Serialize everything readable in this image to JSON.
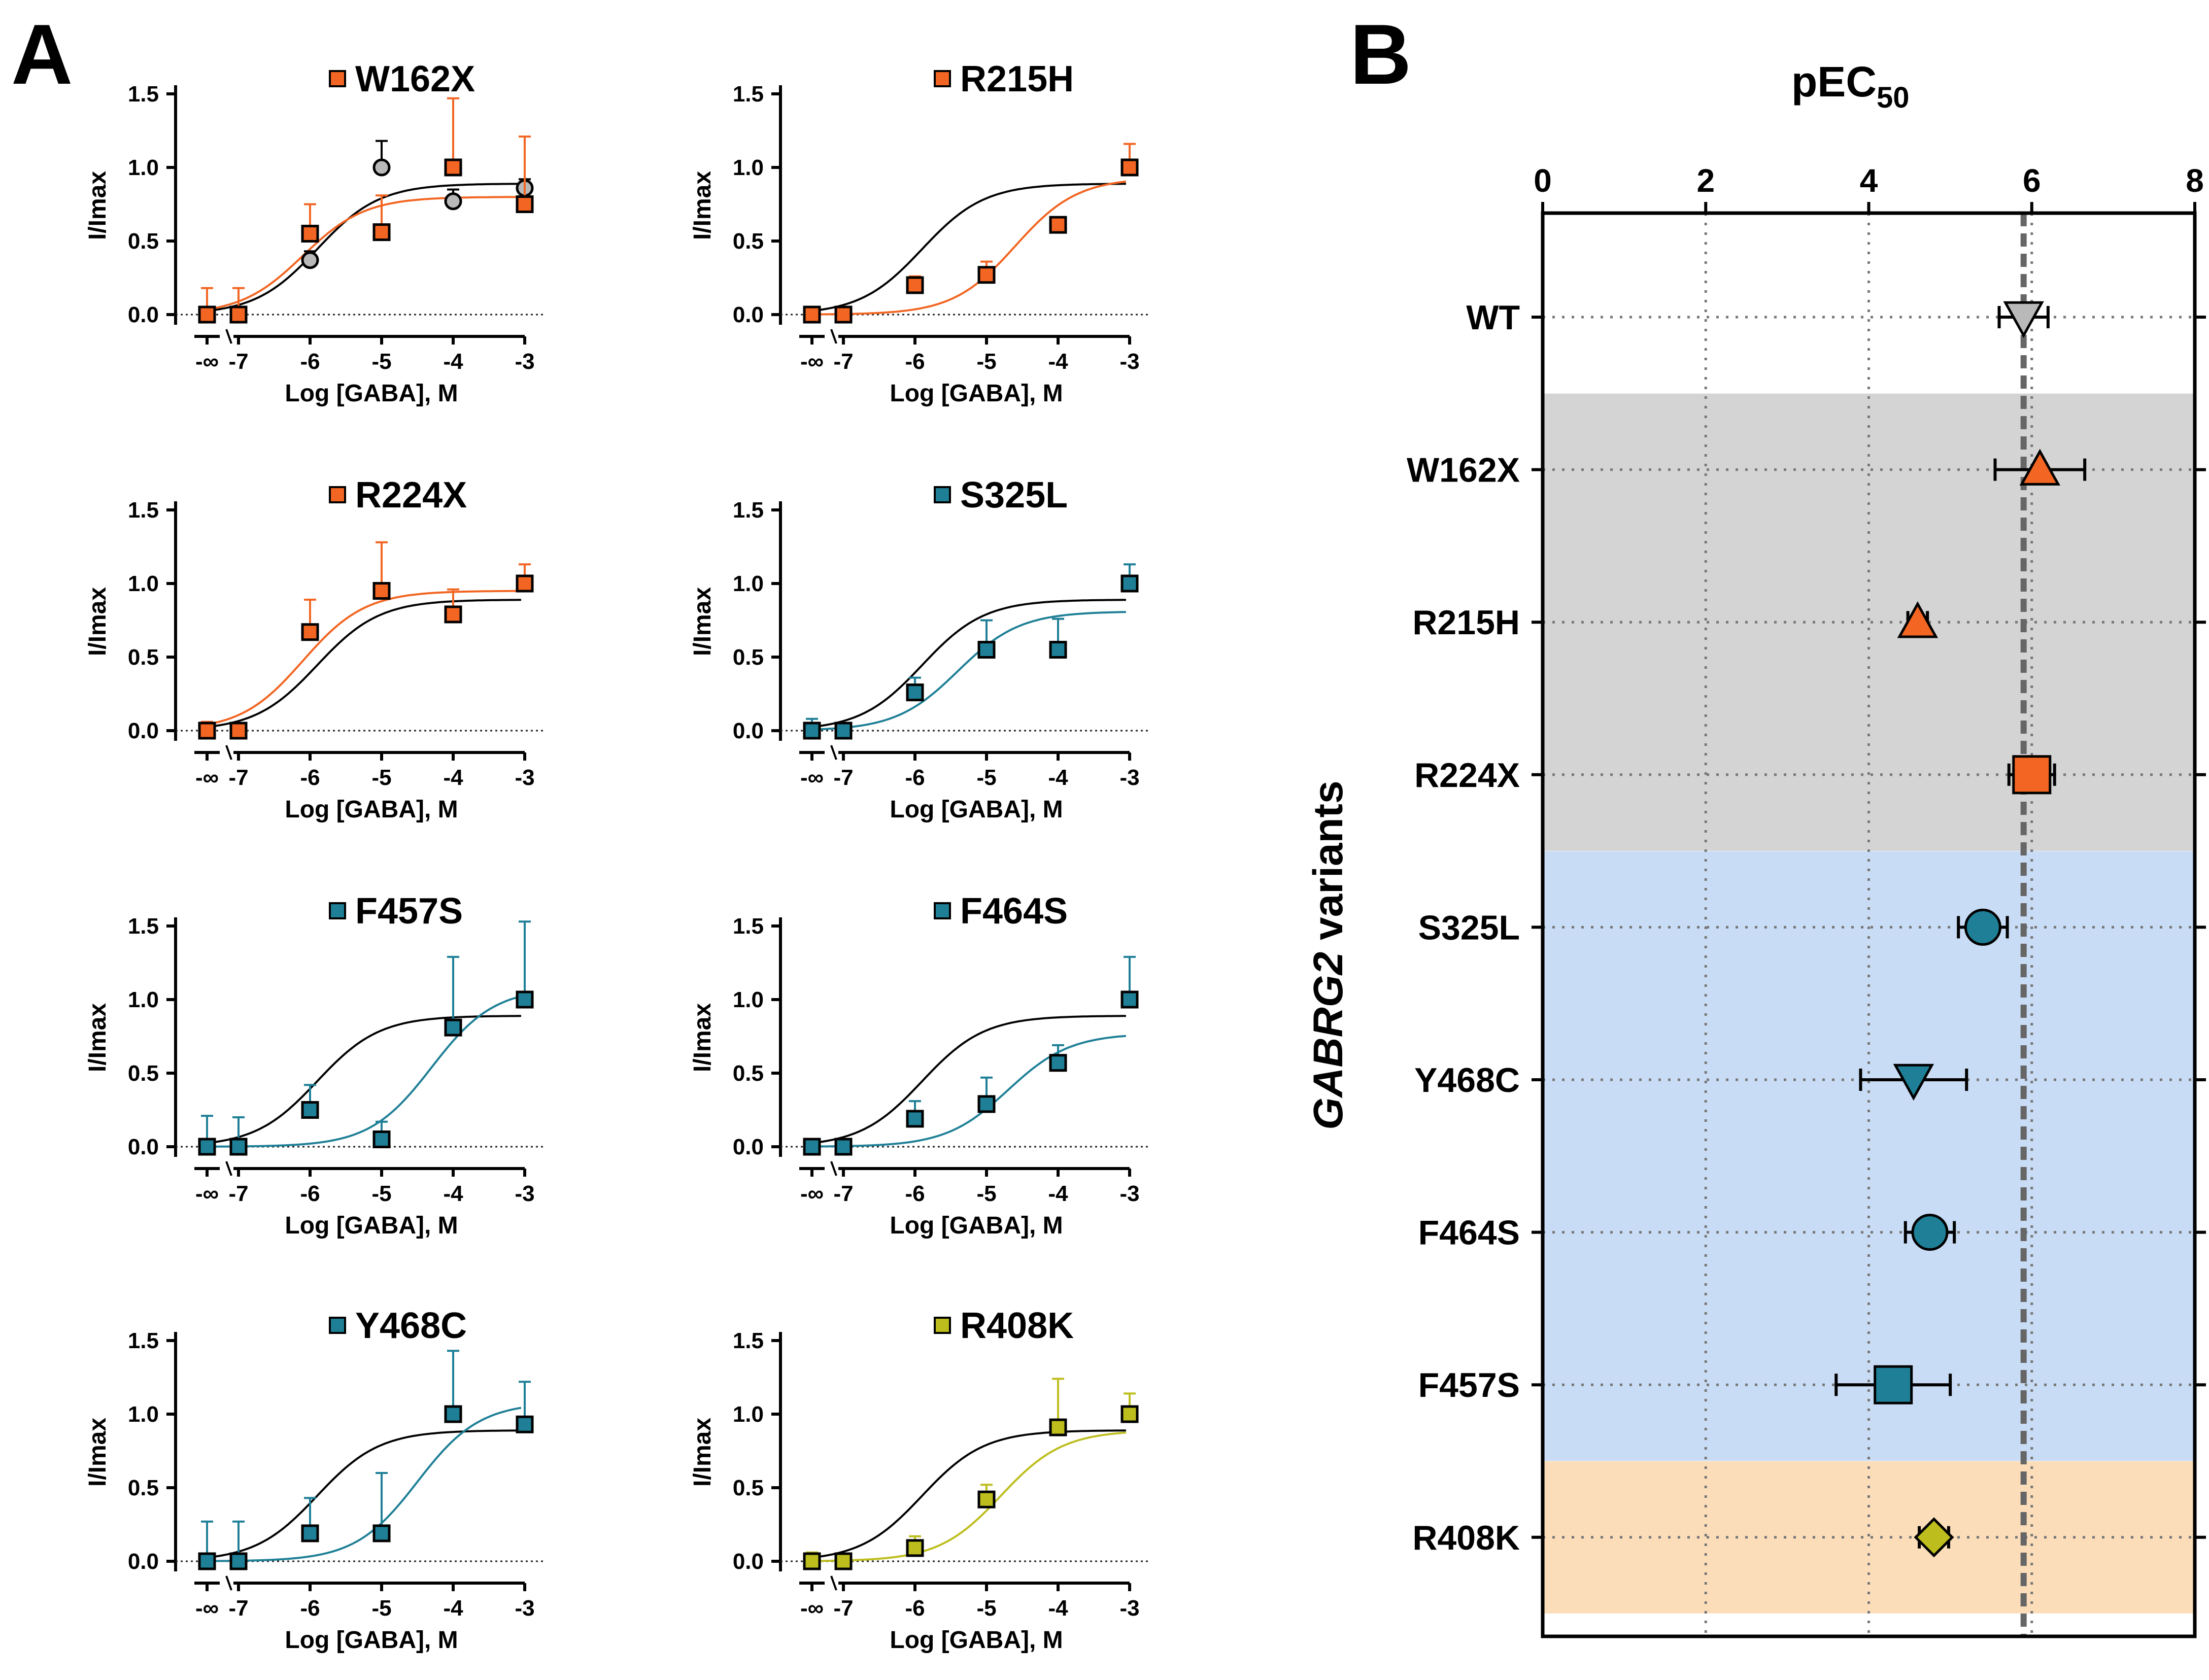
{
  "figure": {
    "panel_a_letter": "A",
    "panel_b_letter": "B"
  },
  "colors": {
    "orange": "#F26522",
    "teal": "#1E7F96",
    "olive": "#BDBE1E",
    "wt_marker": "#B9B9B9",
    "wt_line": "#000000",
    "band_gray": "#D4D4D4",
    "band_blue": "#C9DCF5",
    "band_peach": "#FCDDBA"
  },
  "chart_data": [
    {
      "type": "line",
      "id": "W162X",
      "title": "W162X",
      "color": "orange",
      "xlabel": "Log [GABA], M",
      "ylabel": "I/Imax",
      "x_ticks": [
        "-∞",
        "-7",
        "-6",
        "-5",
        "-4",
        "-3"
      ],
      "y_ticks": [
        "0.0",
        "0.5",
        "1.0",
        "1.5"
      ],
      "ylim": [
        0,
        1.5
      ],
      "variant": {
        "x": [
          -8,
          -7,
          -6,
          -5,
          -4,
          -3
        ],
        "y": [
          0.0,
          0.0,
          0.55,
          0.56,
          1.0,
          0.75
        ],
        "err": [
          0.18,
          0.18,
          0.2,
          0.25,
          0.47,
          0.46
        ]
      },
      "wt_points": {
        "x": [
          -6,
          -5,
          -4,
          -3
        ],
        "y": [
          0.37,
          1.0,
          0.77,
          0.86
        ],
        "err": [
          0.06,
          0.18,
          0.08,
          0.06
        ]
      },
      "variant_fit": {
        "top": 0.8,
        "logEC50": -6.1,
        "hill": 1.0
      },
      "wt_fit": {
        "top": 0.89,
        "logEC50": -5.9,
        "hill": 1.0
      }
    },
    {
      "type": "line",
      "id": "R215H",
      "title": "R215H",
      "color": "orange",
      "xlabel": "Log [GABA], M",
      "ylabel": "I/Imax",
      "x_ticks": [
        "-∞",
        "-7",
        "-6",
        "-5",
        "-4",
        "-3"
      ],
      "y_ticks": [
        "0.0",
        "0.5",
        "1.0",
        "1.5"
      ],
      "ylim": [
        0,
        1.5
      ],
      "variant": {
        "x": [
          -8,
          -7,
          -6,
          -5,
          -4,
          -3
        ],
        "y": [
          0.0,
          0.0,
          0.2,
          0.27,
          0.61,
          1.0
        ],
        "err": [
          0.04,
          0.02,
          0.06,
          0.09,
          0.0,
          0.16
        ]
      },
      "variant_fit": {
        "top": 0.93,
        "logEC50": -4.6,
        "hill": 1.0
      },
      "wt_fit": {
        "top": 0.89,
        "logEC50": -5.9,
        "hill": 1.0
      }
    },
    {
      "type": "line",
      "id": "R224X",
      "title": "R224X",
      "color": "orange",
      "xlabel": "Log [GABA], M",
      "ylabel": "I/Imax",
      "x_ticks": [
        "-∞",
        "-7",
        "-6",
        "-5",
        "-4",
        "-3"
      ],
      "y_ticks": [
        "0.0",
        "0.5",
        "1.0",
        "1.5"
      ],
      "ylim": [
        0,
        1.5
      ],
      "variant": {
        "x": [
          -8,
          -7,
          -6,
          -5,
          -4,
          -3
        ],
        "y": [
          0.0,
          0.0,
          0.67,
          0.95,
          0.79,
          1.0
        ],
        "err": [
          0.06,
          0.0,
          0.22,
          0.33,
          0.17,
          0.13
        ]
      },
      "variant_fit": {
        "top": 0.95,
        "logEC50": -6.1,
        "hill": 1.0
      },
      "wt_fit": {
        "top": 0.89,
        "logEC50": -5.9,
        "hill": 1.0
      }
    },
    {
      "type": "line",
      "id": "S325L",
      "title": "S325L",
      "color": "teal",
      "xlabel": "Log [GABA], M",
      "ylabel": "I/Imax",
      "x_ticks": [
        "-∞",
        "-7",
        "-6",
        "-5",
        "-4",
        "-3"
      ],
      "y_ticks": [
        "0.0",
        "0.5",
        "1.0",
        "1.5"
      ],
      "ylim": [
        0,
        1.5
      ],
      "variant": {
        "x": [
          -8,
          -7,
          -6,
          -5,
          -4,
          -3
        ],
        "y": [
          0.0,
          0.0,
          0.26,
          0.55,
          0.55,
          1.0
        ],
        "err": [
          0.08,
          0.05,
          0.1,
          0.2,
          0.21,
          0.13
        ]
      },
      "variant_fit": {
        "top": 0.81,
        "logEC50": -5.4,
        "hill": 1.0
      },
      "wt_fit": {
        "top": 0.89,
        "logEC50": -5.9,
        "hill": 1.0
      }
    },
    {
      "type": "line",
      "id": "F457S",
      "title": "F457S",
      "color": "teal",
      "xlabel": "Log [GABA], M",
      "ylabel": "I/Imax",
      "x_ticks": [
        "-∞",
        "-7",
        "-6",
        "-5",
        "-4",
        "-3"
      ],
      "y_ticks": [
        "0.0",
        "0.5",
        "1.0",
        "1.5"
      ],
      "ylim": [
        0,
        1.5
      ],
      "variant": {
        "x": [
          -8,
          -7,
          -6,
          -5,
          -4,
          -3
        ],
        "y": [
          0.0,
          0.0,
          0.25,
          0.05,
          0.81,
          1.0
        ],
        "err": [
          0.21,
          0.2,
          0.17,
          0.12,
          0.48,
          0.53
        ]
      },
      "variant_fit": {
        "top": 1.08,
        "logEC50": -4.3,
        "hill": 1.0
      },
      "wt_fit": {
        "top": 0.89,
        "logEC50": -5.9,
        "hill": 1.0
      }
    },
    {
      "type": "line",
      "id": "F464S",
      "title": "F464S",
      "color": "teal",
      "xlabel": "Log [GABA], M",
      "ylabel": "I/Imax",
      "x_ticks": [
        "-∞",
        "-7",
        "-6",
        "-5",
        "-4",
        "-3"
      ],
      "y_ticks": [
        "0.0",
        "0.5",
        "1.0",
        "1.5"
      ],
      "ylim": [
        0,
        1.5
      ],
      "variant": {
        "x": [
          -8,
          -7,
          -6,
          -5,
          -4,
          -3
        ],
        "y": [
          0.0,
          0.0,
          0.19,
          0.29,
          0.57,
          1.0
        ],
        "err": [
          0.04,
          0.03,
          0.12,
          0.18,
          0.12,
          0.29
        ]
      },
      "variant_fit": {
        "top": 0.77,
        "logEC50": -4.7,
        "hill": 1.0
      },
      "wt_fit": {
        "top": 0.89,
        "logEC50": -5.9,
        "hill": 1.0
      }
    },
    {
      "type": "line",
      "id": "Y468C",
      "title": "Y468C",
      "color": "teal",
      "xlabel": "Log [GABA], M",
      "ylabel": "I/Imax",
      "x_ticks": [
        "-∞",
        "-7",
        "-6",
        "-5",
        "-4",
        "-3"
      ],
      "y_ticks": [
        "0.0",
        "0.5",
        "1.0",
        "1.5"
      ],
      "ylim": [
        0,
        1.5
      ],
      "variant": {
        "x": [
          -8,
          -7,
          -6,
          -5,
          -4,
          -3
        ],
        "y": [
          0.0,
          0.0,
          0.19,
          0.19,
          1.0,
          0.93
        ],
        "err": [
          0.27,
          0.27,
          0.24,
          0.41,
          0.43,
          0.29
        ]
      },
      "variant_fit": {
        "top": 1.08,
        "logEC50": -4.5,
        "hill": 1.0
      },
      "wt_fit": {
        "top": 0.89,
        "logEC50": -5.9,
        "hill": 1.0
      }
    },
    {
      "type": "line",
      "id": "R408K",
      "title": "R408K",
      "color": "olive",
      "xlabel": "Log [GABA], M",
      "ylabel": "I/Imax",
      "x_ticks": [
        "-∞",
        "-7",
        "-6",
        "-5",
        "-4",
        "-3"
      ],
      "y_ticks": [
        "0.0",
        "0.5",
        "1.0",
        "1.5"
      ],
      "ylim": [
        0,
        1.5
      ],
      "variant": {
        "x": [
          -8,
          -7,
          -6,
          -5,
          -4,
          -3
        ],
        "y": [
          0.0,
          0.0,
          0.09,
          0.42,
          0.91,
          1.0
        ],
        "err": [
          0.06,
          0.04,
          0.08,
          0.1,
          0.33,
          0.14
        ]
      },
      "variant_fit": {
        "top": 0.89,
        "logEC50": -4.8,
        "hill": 1.0
      },
      "wt_fit": {
        "top": 0.89,
        "logEC50": -5.9,
        "hill": 1.0
      }
    },
    {
      "type": "scatter",
      "id": "pEC50",
      "title": "pEC",
      "title_sub": "50",
      "ylabel_italic": "GABRG2",
      "ylabel_rest": " variants",
      "x_ticks": [
        "0",
        "2",
        "4",
        "6",
        "8"
      ],
      "xlim": [
        0,
        8
      ],
      "reference_line": 5.9,
      "categories": [
        "WT",
        "W162X",
        "R215H",
        "R224X",
        "S325L",
        "Y468C",
        "F464S",
        "F457S",
        "R408K"
      ],
      "values": [
        5.9,
        6.1,
        4.6,
        6.0,
        5.4,
        4.55,
        4.75,
        4.3,
        4.8
      ],
      "err": [
        0.3,
        0.55,
        0.12,
        0.28,
        0.3,
        0.65,
        0.3,
        0.7,
        0.18
      ],
      "markers": [
        "triangle-down",
        "triangle-up",
        "triangle-up",
        "square",
        "circle",
        "triangle-down",
        "circle",
        "square",
        "diamond"
      ],
      "marker_colors": [
        "wt_marker",
        "orange",
        "orange",
        "orange",
        "teal",
        "teal",
        "teal",
        "teal",
        "olive"
      ],
      "bands": [
        {
          "from": 1,
          "to": 3,
          "color": "band_gray"
        },
        {
          "from": 4,
          "to": 7,
          "color": "band_blue"
        },
        {
          "from": 8,
          "to": 8,
          "color": "band_peach"
        }
      ]
    }
  ]
}
